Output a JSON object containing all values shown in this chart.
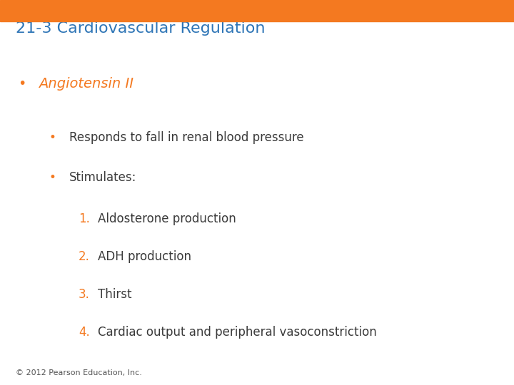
{
  "title": "21-3 Cardiovascular Regulation",
  "title_color": "#2E75B6",
  "title_fontsize": 16,
  "header_bar_color": "#F47920",
  "header_bar_height": 0.055,
  "background_color": "#FFFFFF",
  "bullet1_text": "Angiotensin II",
  "bullet1_color": "#F47920",
  "bullet1_fontsize": 14,
  "bullet2_color": "#F47920",
  "bullet2_fontsize": 12,
  "sub_bullet_color": "#3A3A3A",
  "sub_bullet_fontsize": 12,
  "numbered_color": "#F47920",
  "numbered_fontsize": 12,
  "numbered_text_color": "#3A3A3A",
  "copyright_text": "© 2012 Pearson Education, Inc.",
  "copyright_fontsize": 8,
  "copyright_color": "#555555",
  "bullet2a_text": "Responds to fall in renal blood pressure",
  "bullet2b_text": "Stimulates:",
  "items": [
    "Aldosterone production",
    "ADH production",
    "Thirst",
    "Cardiac output and peripheral vasoconstriction"
  ]
}
